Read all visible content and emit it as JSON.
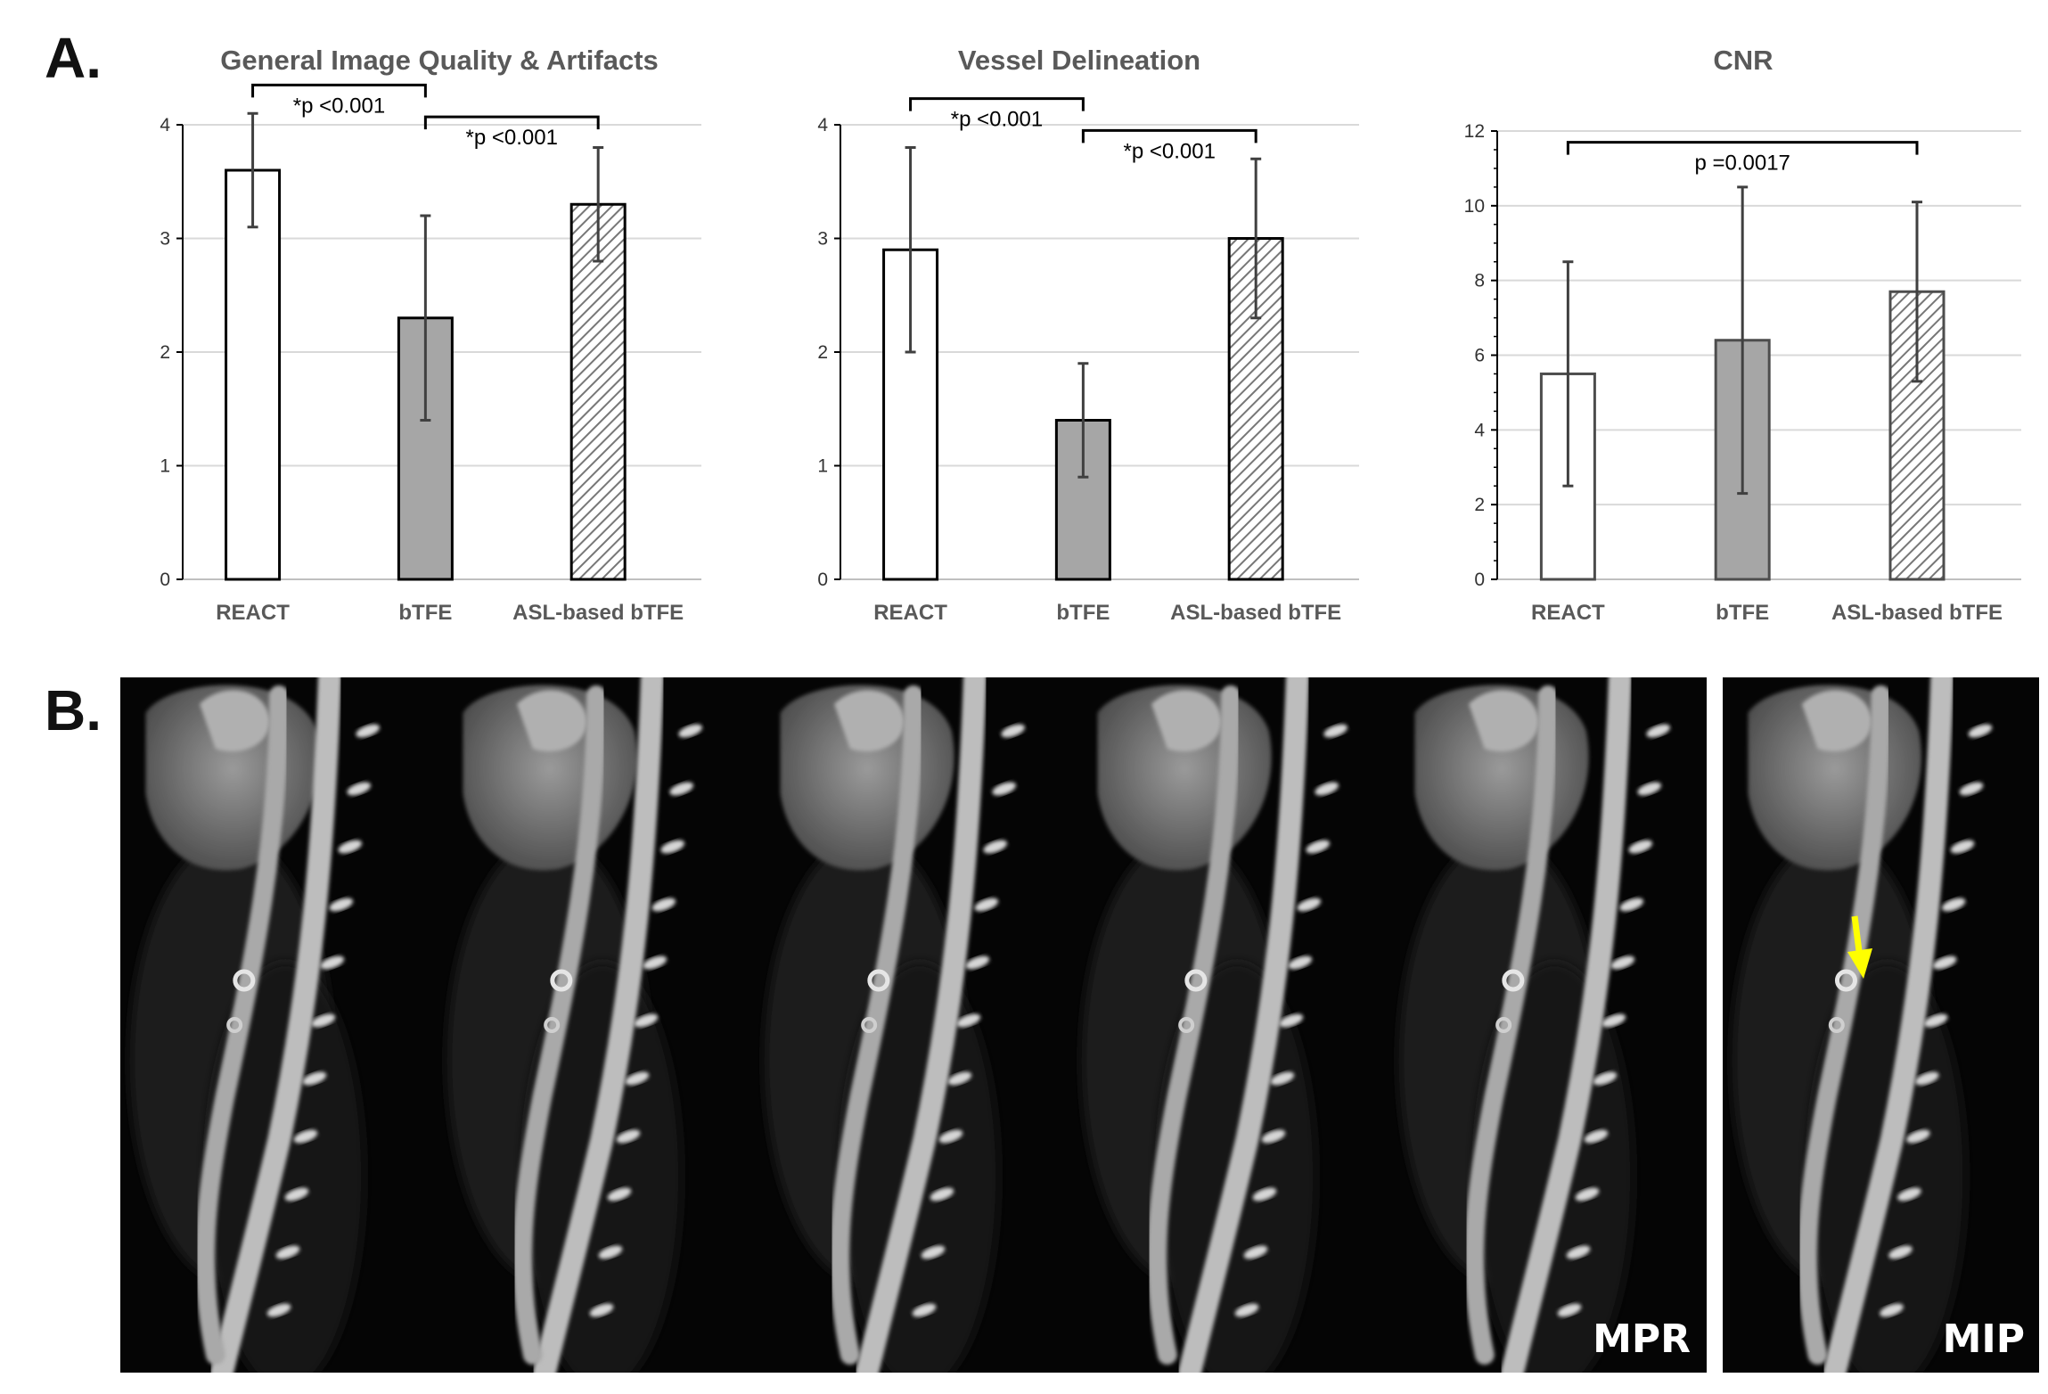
{
  "panel_labels": {
    "a": "A.",
    "b": "B."
  },
  "chart_data": [
    {
      "type": "bar",
      "title": "General Image Quality & Artifacts",
      "categories": [
        "REACT",
        "bTFE",
        "ASL-based bTFE"
      ],
      "values": [
        3.6,
        2.3,
        3.3
      ],
      "errors": [
        [
          3.1,
          4.1
        ],
        [
          1.4,
          3.2
        ],
        [
          2.8,
          3.8
        ]
      ],
      "ylim": [
        0,
        4
      ],
      "yticks": [
        0,
        1,
        2,
        3,
        4
      ],
      "grid": true,
      "bar_styles": [
        "white",
        "gray",
        "hatched"
      ],
      "annotations": [
        {
          "from": 0,
          "to": 1,
          "level": 4.35,
          "text": "*p <0.001"
        },
        {
          "from": 1,
          "to": 2,
          "level": 4.07,
          "text": "*p <0.001"
        }
      ]
    },
    {
      "type": "bar",
      "title": "Vessel Delineation",
      "categories": [
        "REACT",
        "bTFE",
        "ASL-based bTFE"
      ],
      "values": [
        2.9,
        1.4,
        3.0
      ],
      "errors": [
        [
          2.0,
          3.8
        ],
        [
          0.9,
          1.9
        ],
        [
          2.3,
          3.7
        ]
      ],
      "ylim": [
        0,
        4
      ],
      "yticks": [
        0,
        1,
        2,
        3,
        4
      ],
      "grid": true,
      "bar_styles": [
        "white",
        "gray",
        "hatched"
      ],
      "annotations": [
        {
          "from": 0,
          "to": 1,
          "level": 4.23,
          "text": "*p <0.001"
        },
        {
          "from": 1,
          "to": 2,
          "level": 3.95,
          "text": "*p <0.001"
        }
      ]
    },
    {
      "type": "bar",
      "title": "CNR",
      "categories": [
        "REACT",
        "bTFE",
        "ASL-based bTFE"
      ],
      "values": [
        5.5,
        6.4,
        7.7
      ],
      "errors": [
        [
          2.5,
          8.5
        ],
        [
          2.3,
          10.5
        ],
        [
          5.3,
          10.1
        ]
      ],
      "ylim": [
        0,
        12
      ],
      "yticks": [
        0,
        2,
        4,
        6,
        8,
        10,
        12
      ],
      "grid": true,
      "bar_styles": [
        "white",
        "gray",
        "hatched"
      ],
      "annotations": [
        {
          "from": 0,
          "to": 2,
          "level": 11.7,
          "text": "p =0.0017"
        }
      ]
    }
  ],
  "images": {
    "mpr_label": "MPR",
    "mip_label": "MIP",
    "mpr_frames": 5,
    "arrow_color": "#ffff00"
  }
}
